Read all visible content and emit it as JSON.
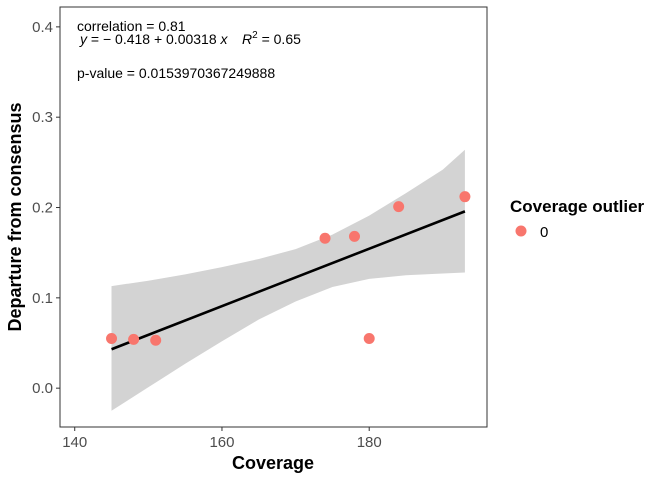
{
  "chart_data": {
    "type": "scatter",
    "xlabel": "Coverage",
    "ylabel": "Departure from consensus",
    "xlim": [
      138,
      196
    ],
    "ylim": [
      -0.043,
      0.422
    ],
    "x_ticks": [
      140,
      160,
      180
    ],
    "y_ticks": [
      0.0,
      0.1,
      0.2,
      0.3,
      0.4
    ],
    "x_tick_labels": [
      "140",
      "160",
      "180"
    ],
    "y_tick_labels": [
      "0.0",
      "0.1",
      "0.2",
      "0.3",
      "0.4"
    ],
    "grid": false,
    "legend": {
      "title": "Coverage outlier",
      "placement": "right",
      "entries": [
        {
          "label": "0",
          "color": "#F8766D"
        }
      ]
    },
    "series": [
      {
        "name": "0",
        "color": "#F8766D",
        "points": [
          {
            "x": 145,
            "y": 0.055
          },
          {
            "x": 148,
            "y": 0.054
          },
          {
            "x": 151,
            "y": 0.053
          },
          {
            "x": 174,
            "y": 0.166
          },
          {
            "x": 178,
            "y": 0.168
          },
          {
            "x": 180,
            "y": 0.055
          },
          {
            "x": 184,
            "y": 0.201
          },
          {
            "x": 193,
            "y": 0.212
          }
        ]
      }
    ],
    "fit": {
      "intercept": -0.418,
      "slope": 0.00318,
      "x_range": [
        145,
        193
      ],
      "line_color": "#000000",
      "ribbon_color": "#D3D3D3",
      "ci_band": [
        {
          "x": 145,
          "lower": -0.025,
          "upper": 0.113
        },
        {
          "x": 150,
          "lower": 0.001,
          "upper": 0.119
        },
        {
          "x": 155,
          "lower": 0.027,
          "upper": 0.126
        },
        {
          "x": 160,
          "lower": 0.052,
          "upper": 0.134
        },
        {
          "x": 165,
          "lower": 0.076,
          "upper": 0.143
        },
        {
          "x": 170,
          "lower": 0.096,
          "upper": 0.154
        },
        {
          "x": 175,
          "lower": 0.112,
          "upper": 0.17
        },
        {
          "x": 180,
          "lower": 0.121,
          "upper": 0.191
        },
        {
          "x": 185,
          "lower": 0.125,
          "upper": 0.216
        },
        {
          "x": 190,
          "lower": 0.127,
          "upper": 0.242
        },
        {
          "x": 193,
          "lower": 0.128,
          "upper": 0.264
        }
      ]
    },
    "annotations": {
      "correlation": "correlation = 0.81",
      "equation_lhs": "y",
      "equation_eq": " = ",
      "equation_rhs": "− 0.418 + 0.00318 ",
      "equation_x": "x",
      "r2_symbol": "R",
      "r2_exponent": "2",
      "r2_value": " = 0.65",
      "pvalue": "p-value = 0.0153970367249888"
    }
  }
}
